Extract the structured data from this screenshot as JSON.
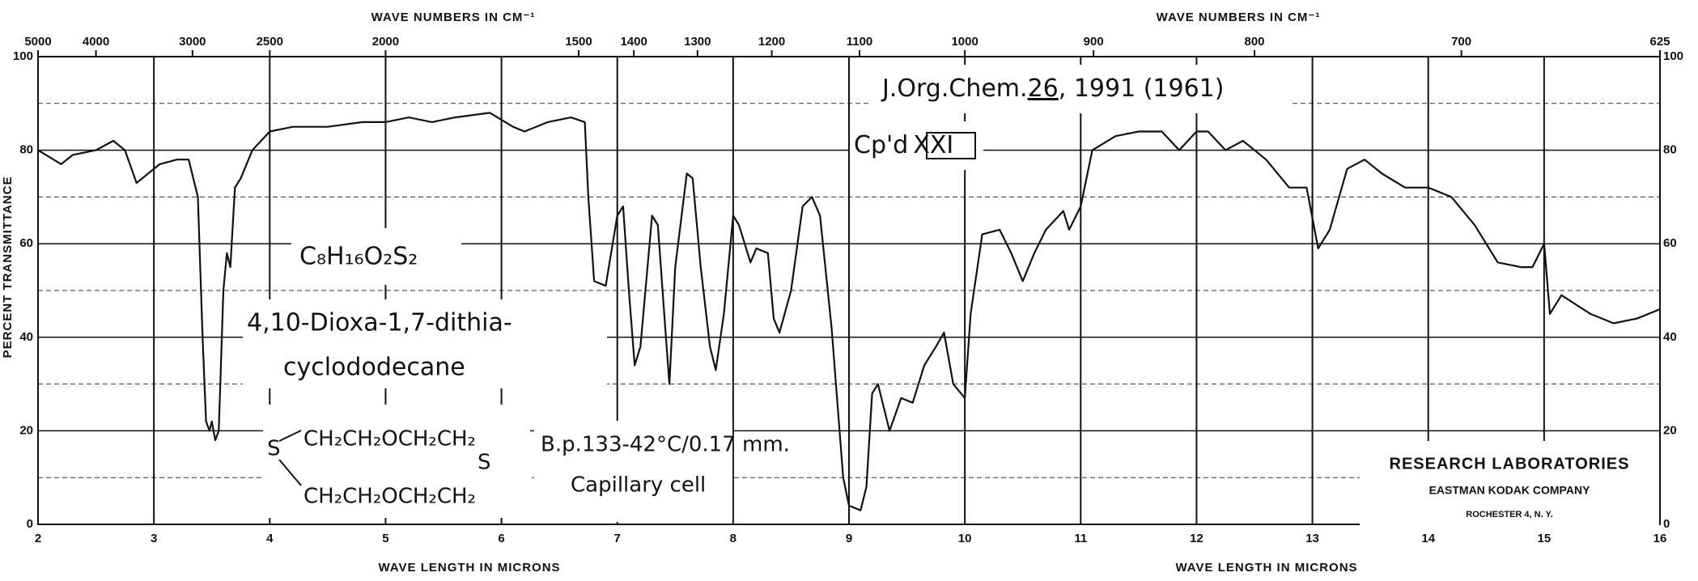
{
  "chart_data": {
    "type": "line",
    "x_label": "WAVE LENGTH IN MICRONS",
    "x2_label": "WAVE NUMBERS IN CM⁻¹",
    "y_label": "PERCENT TRANSMITTANCE",
    "xlim": [
      2,
      16
    ],
    "xticks": [
      2,
      3,
      4,
      5,
      6,
      7,
      8,
      9,
      10,
      11,
      12,
      13,
      14,
      15,
      16
    ],
    "x2ticks": [
      5000,
      4000,
      3000,
      2500,
      2000,
      1500,
      1400,
      1300,
      1200,
      1100,
      1000,
      900,
      800,
      700,
      625
    ],
    "x2_conversion": 10000,
    "ylim": [
      0,
      100
    ],
    "yticks": [
      0,
      20,
      40,
      60,
      80,
      100
    ],
    "yminor_ticks": [
      10,
      30,
      50,
      70,
      90
    ],
    "grid": true,
    "x": [
      2.0,
      2.2,
      2.3,
      2.5,
      2.65,
      2.75,
      2.85,
      2.95,
      3.05,
      3.2,
      3.3,
      3.38,
      3.42,
      3.45,
      3.48,
      3.5,
      3.53,
      3.56,
      3.6,
      3.63,
      3.66,
      3.7,
      3.75,
      3.85,
      4.0,
      4.2,
      4.5,
      4.8,
      5.0,
      5.2,
      5.4,
      5.6,
      5.9,
      6.1,
      6.2,
      6.4,
      6.6,
      6.72,
      6.75,
      6.8,
      6.9,
      7.0,
      7.05,
      7.1,
      7.15,
      7.2,
      7.3,
      7.35,
      7.42,
      7.45,
      7.5,
      7.6,
      7.65,
      7.72,
      7.8,
      7.85,
      7.92,
      8.0,
      8.05,
      8.15,
      8.2,
      8.3,
      8.35,
      8.4,
      8.5,
      8.6,
      8.68,
      8.75,
      8.85,
      8.95,
      9.0,
      9.1,
      9.15,
      9.2,
      9.25,
      9.35,
      9.45,
      9.55,
      9.65,
      9.75,
      9.82,
      9.9,
      10.0,
      10.05,
      10.15,
      10.3,
      10.4,
      10.5,
      10.6,
      10.7,
      10.85,
      10.9,
      11.0,
      11.1,
      11.3,
      11.5,
      11.7,
      11.85,
      12.0,
      12.1,
      12.25,
      12.4,
      12.6,
      12.8,
      12.95,
      13.05,
      13.15,
      13.3,
      13.45,
      13.6,
      13.8,
      14.0,
      14.2,
      14.4,
      14.6,
      14.8,
      14.9,
      15.0,
      15.05,
      15.15,
      15.4,
      15.6,
      15.8,
      16.0
    ],
    "series": [
      {
        "color": "#111111",
        "values": [
          80,
          77,
          79,
          80,
          82,
          80,
          73,
          75,
          77,
          78,
          78,
          70,
          40,
          22,
          20,
          22,
          18,
          20,
          50,
          58,
          55,
          72,
          74,
          80,
          84,
          85,
          85,
          86,
          86,
          87,
          86,
          87,
          88,
          85,
          84,
          86,
          87,
          86,
          70,
          52,
          51,
          66,
          68,
          50,
          34,
          38,
          66,
          64,
          40,
          30,
          55,
          75,
          74,
          55,
          38,
          33,
          45,
          66,
          64,
          56,
          59,
          58,
          44,
          41,
          50,
          68,
          70,
          66,
          42,
          10,
          4,
          3,
          8,
          28,
          30,
          20,
          27,
          26,
          34,
          38,
          41,
          30,
          27,
          45,
          62,
          63,
          58,
          52,
          58,
          63,
          67,
          63,
          68,
          80,
          83,
          84,
          84,
          80,
          84,
          84,
          80,
          82,
          78,
          72,
          72,
          59,
          63,
          76,
          78,
          75,
          72,
          72,
          70,
          64,
          56,
          55,
          55,
          60,
          45,
          49,
          45,
          43,
          44,
          46
        ]
      }
    ],
    "annotations": {
      "reference": [
        "J.Org.Chem.",
        "26",
        ", 1991 (1961)"
      ],
      "compound": [
        "Cp'd",
        "XXI"
      ],
      "formula": "C₈H₁₆O₂S₂",
      "name": [
        "4,10-Dioxa-1,7-dithia-",
        "cyclododecane"
      ],
      "structure": [
        "CH₂CH₂OCH₂CH₂",
        "S",
        "S",
        "CH₂CH₂OCH₂CH₂"
      ],
      "conditions": [
        "B.p.133-42°C/0.17 mm.",
        "Capillary cell"
      ],
      "company": [
        "RESEARCH LABORATORIES",
        "EASTMAN KODAK COMPANY",
        "ROCHESTER 4, N. Y."
      ]
    }
  }
}
